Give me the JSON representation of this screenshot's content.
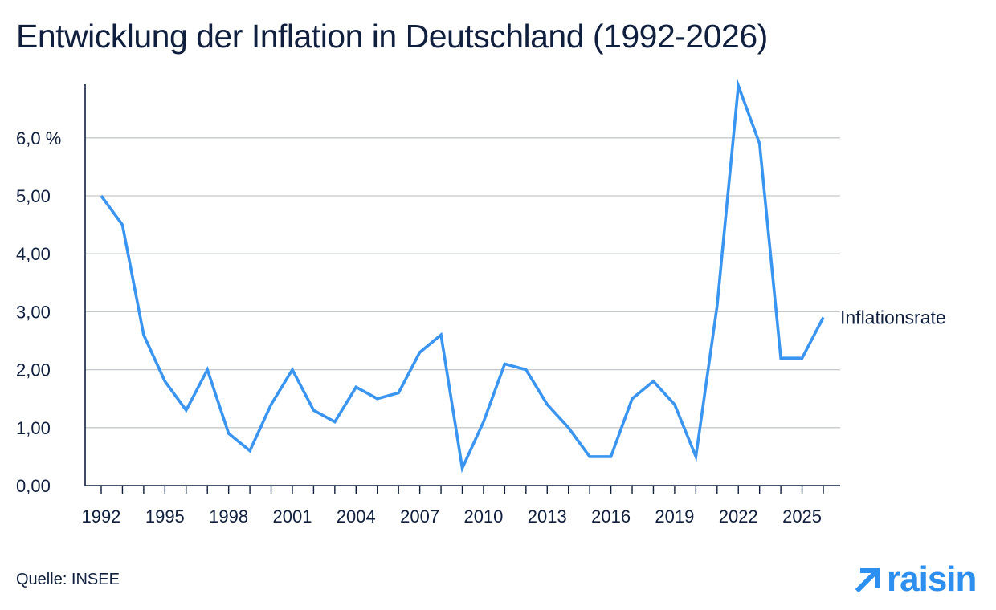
{
  "chart_data": {
    "type": "line",
    "title": "Entwicklung der Inflation in Deutschland (1992-2026)",
    "xlabel": "",
    "ylabel": "",
    "x": [
      1992,
      1993,
      1994,
      1995,
      1996,
      1997,
      1998,
      1999,
      2000,
      2001,
      2002,
      2003,
      2004,
      2005,
      2006,
      2007,
      2008,
      2009,
      2010,
      2011,
      2012,
      2013,
      2014,
      2015,
      2016,
      2017,
      2018,
      2019,
      2020,
      2021,
      2022,
      2023,
      2024,
      2025,
      2026
    ],
    "series": [
      {
        "name": "Inflationsrate",
        "color": "#3a95f0",
        "values": [
          5.0,
          4.5,
          2.6,
          1.8,
          1.3,
          2.0,
          0.9,
          0.6,
          1.4,
          2.0,
          1.3,
          1.1,
          1.7,
          1.5,
          1.6,
          2.3,
          2.6,
          0.3,
          1.1,
          2.1,
          2.0,
          1.4,
          1.0,
          0.5,
          0.5,
          1.5,
          1.8,
          1.4,
          0.5,
          3.1,
          6.9,
          5.9,
          2.2,
          2.2,
          2.9
        ]
      }
    ],
    "xticks": [
      "1992",
      "1995",
      "1998",
      "2001",
      "2004",
      "2007",
      "2010",
      "2013",
      "2016",
      "2019",
      "2022",
      "2025"
    ],
    "xtick_years": [
      1992,
      1995,
      1998,
      2001,
      2004,
      2007,
      2010,
      2013,
      2016,
      2019,
      2022,
      2025
    ],
    "yticks": [
      {
        "value": 0,
        "label": "0,00"
      },
      {
        "value": 1,
        "label": "1,00"
      },
      {
        "value": 2,
        "label": "2,00"
      },
      {
        "value": 3,
        "label": "3,00"
      },
      {
        "value": 4,
        "label": "4,00"
      },
      {
        "value": 5,
        "label": "5,00"
      },
      {
        "value": 6,
        "label": "6,0 %"
      }
    ],
    "xlim": [
      1992,
      2026
    ],
    "ylim": [
      0,
      6.9
    ],
    "grid": "horizontal",
    "legend": "label at line end"
  },
  "source": "Quelle: INSEE",
  "brand": {
    "name": "raisin",
    "icon": "arrow-up-right-icon",
    "color": "#2d8fef"
  },
  "colors": {
    "text": "#0f1f3d",
    "grid": "#c4c8cc",
    "axis": "#0f1f3d",
    "line": "#3a95f0"
  }
}
